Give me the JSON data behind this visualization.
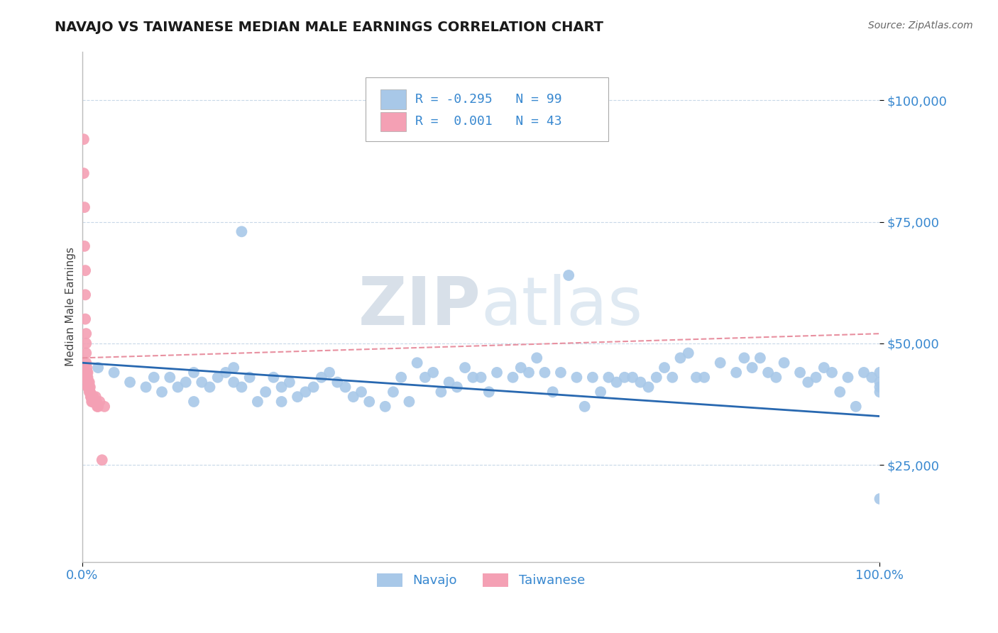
{
  "title": "NAVAJO VS TAIWANESE MEDIAN MALE EARNINGS CORRELATION CHART",
  "source": "Source: ZipAtlas.com",
  "ylabel": "Median Male Earnings",
  "xlim": [
    0,
    1.0
  ],
  "ylim": [
    5000,
    110000
  ],
  "yticks": [
    25000,
    50000,
    75000,
    100000
  ],
  "xticks": [
    0.0,
    1.0
  ],
  "xticklabels": [
    "0.0%",
    "100.0%"
  ],
  "yticklabels": [
    "$25,000",
    "$50,000",
    "$75,000",
    "$100,000"
  ],
  "navajo_color": "#a8c8e8",
  "taiwanese_color": "#f4a0b4",
  "navajo_line_color": "#2868b0",
  "taiwanese_line_color": "#e890a0",
  "background_color": "#ffffff",
  "grid_color": "#c8d8e8",
  "tick_color": "#3888d0",
  "navajo_x": [
    0.02,
    0.04,
    0.06,
    0.08,
    0.09,
    0.1,
    0.11,
    0.12,
    0.13,
    0.14,
    0.14,
    0.15,
    0.16,
    0.17,
    0.18,
    0.19,
    0.19,
    0.2,
    0.2,
    0.21,
    0.22,
    0.23,
    0.24,
    0.25,
    0.25,
    0.26,
    0.27,
    0.28,
    0.29,
    0.3,
    0.31,
    0.32,
    0.33,
    0.34,
    0.35,
    0.36,
    0.38,
    0.39,
    0.4,
    0.41,
    0.42,
    0.43,
    0.44,
    0.45,
    0.46,
    0.47,
    0.48,
    0.49,
    0.5,
    0.51,
    0.52,
    0.54,
    0.55,
    0.56,
    0.57,
    0.58,
    0.59,
    0.6,
    0.61,
    0.62,
    0.63,
    0.64,
    0.65,
    0.66,
    0.67,
    0.68,
    0.69,
    0.7,
    0.71,
    0.72,
    0.73,
    0.74,
    0.75,
    0.76,
    0.77,
    0.78,
    0.8,
    0.82,
    0.83,
    0.84,
    0.85,
    0.86,
    0.87,
    0.88,
    0.9,
    0.91,
    0.92,
    0.93,
    0.94,
    0.95,
    0.96,
    0.97,
    0.98,
    0.99,
    1.0,
    1.0,
    1.0,
    1.0,
    1.0
  ],
  "navajo_y": [
    45000,
    44000,
    42000,
    41000,
    43000,
    40000,
    43000,
    41000,
    42000,
    44000,
    38000,
    42000,
    41000,
    43000,
    44000,
    42000,
    45000,
    41000,
    73000,
    43000,
    38000,
    40000,
    43000,
    38000,
    41000,
    42000,
    39000,
    40000,
    41000,
    43000,
    44000,
    42000,
    41000,
    39000,
    40000,
    38000,
    37000,
    40000,
    43000,
    38000,
    46000,
    43000,
    44000,
    40000,
    42000,
    41000,
    45000,
    43000,
    43000,
    40000,
    44000,
    43000,
    45000,
    44000,
    47000,
    44000,
    40000,
    44000,
    64000,
    43000,
    37000,
    43000,
    40000,
    43000,
    42000,
    43000,
    43000,
    42000,
    41000,
    43000,
    45000,
    43000,
    47000,
    48000,
    43000,
    43000,
    46000,
    44000,
    47000,
    45000,
    47000,
    44000,
    43000,
    46000,
    44000,
    42000,
    43000,
    45000,
    44000,
    40000,
    43000,
    37000,
    44000,
    43000,
    44000,
    42000,
    41000,
    40000,
    18000
  ],
  "taiwanese_x": [
    0.002,
    0.002,
    0.003,
    0.003,
    0.004,
    0.004,
    0.004,
    0.005,
    0.005,
    0.005,
    0.005,
    0.006,
    0.006,
    0.006,
    0.006,
    0.007,
    0.007,
    0.007,
    0.007,
    0.008,
    0.008,
    0.008,
    0.009,
    0.009,
    0.009,
    0.01,
    0.01,
    0.01,
    0.011,
    0.011,
    0.012,
    0.012,
    0.013,
    0.014,
    0.015,
    0.016,
    0.017,
    0.018,
    0.019,
    0.02,
    0.022,
    0.025,
    0.028
  ],
  "taiwanese_y": [
    92000,
    85000,
    78000,
    70000,
    65000,
    60000,
    55000,
    52000,
    50000,
    48000,
    46000,
    45000,
    44000,
    43000,
    43000,
    44000,
    43000,
    42000,
    41000,
    42000,
    41000,
    41000,
    42000,
    41000,
    40000,
    41000,
    40000,
    40000,
    39000,
    39000,
    39000,
    38000,
    38000,
    39000,
    38000,
    38000,
    39000,
    38000,
    37000,
    37000,
    38000,
    26000,
    37000
  ],
  "navajo_trend_x0": 0.0,
  "navajo_trend_y0": 46000,
  "navajo_trend_x1": 1.0,
  "navajo_trend_y1": 35000,
  "taiwanese_trend_x0": 0.0,
  "taiwanese_trend_y0": 47000,
  "taiwanese_trend_x1": 1.0,
  "taiwanese_trend_y1": 52000
}
